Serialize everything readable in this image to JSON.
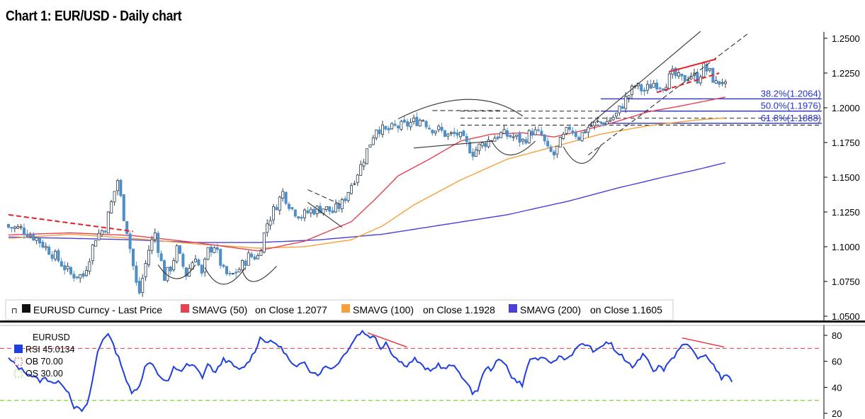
{
  "title": "Chart 1: EUR/USD - Daily chart",
  "colors": {
    "bull": "#2a3e52",
    "bear": "#4e8ec9",
    "sma50": "#e8414f",
    "sma100": "#f4a13a",
    "sma200": "#4a3fd8",
    "rsi": "#1f3fe0",
    "ob_line": "#e83b45",
    "os_line": "#8ad64f",
    "fib": "#2b33c9",
    "trend_red": "#e8202a",
    "pattern": "#333333"
  },
  "legend": {
    "price_icon": "square-marker-icon",
    "price": "EURUSD Curncy - Last Price",
    "sma50_name": "SMAVG (50)",
    "sma50_value": "on Close 1.2077",
    "sma100_name": "SMAVG (100)",
    "sma100_value": "on Close 1.1928",
    "sma200_name": "SMAVG (200)",
    "sma200_value": "on Close 1.1605"
  },
  "rsi_legend": {
    "ticker": "EURUSD",
    "rsi": "RSI  45.0134",
    "ob": "OB  70.00",
    "os": "OS  30.00"
  },
  "chart_data": [
    {
      "type": "candlestick",
      "title": "Chart 1: EUR/USD - Daily chart",
      "y_ticks": [
        "1.2500",
        "1.2250",
        "1.2000",
        "1.1750",
        "1.1500",
        "1.1250",
        "1.1000",
        "1.0750",
        "1.0500"
      ],
      "ylim": [
        1.05,
        1.255
      ],
      "grid": false,
      "close_anchors": [
        [
          0,
          1.114
        ],
        [
          4,
          1.113
        ],
        [
          9,
          1.106
        ],
        [
          15,
          1.093
        ],
        [
          20,
          1.08
        ],
        [
          24,
          1.079
        ],
        [
          28,
          1.107
        ],
        [
          31,
          1.114
        ],
        [
          34,
          1.14
        ],
        [
          35,
          1.148
        ],
        [
          37,
          1.122
        ],
        [
          38,
          1.112
        ],
        [
          41,
          1.073
        ],
        [
          42,
          1.067
        ],
        [
          45,
          1.098
        ],
        [
          47,
          1.11
        ],
        [
          50,
          1.078
        ],
        [
          52,
          1.085
        ],
        [
          54,
          1.098
        ],
        [
          57,
          1.08
        ],
        [
          60,
          1.094
        ],
        [
          62,
          1.079
        ],
        [
          64,
          1.097
        ],
        [
          66,
          1.101
        ],
        [
          69,
          1.082
        ],
        [
          71,
          1.078
        ],
        [
          74,
          1.084
        ],
        [
          77,
          1.093
        ],
        [
          80,
          1.093
        ],
        [
          83,
          1.117
        ],
        [
          85,
          1.126
        ],
        [
          88,
          1.139
        ],
        [
          91,
          1.127
        ],
        [
          94,
          1.122
        ],
        [
          97,
          1.126
        ],
        [
          101,
          1.128
        ],
        [
          104,
          1.125
        ],
        [
          107,
          1.131
        ],
        [
          110,
          1.145
        ],
        [
          113,
          1.158
        ],
        [
          116,
          1.175
        ],
        [
          118,
          1.186
        ],
        [
          121,
          1.183
        ],
        [
          124,
          1.186
        ],
        [
          127,
          1.187
        ],
        [
          130,
          1.19
        ],
        [
          133,
          1.192
        ],
        [
          135,
          1.186
        ],
        [
          138,
          1.184
        ],
        [
          141,
          1.18
        ],
        [
          144,
          1.181
        ],
        [
          146,
          1.176
        ],
        [
          149,
          1.168
        ],
        [
          151,
          1.172
        ],
        [
          155,
          1.178
        ],
        [
          158,
          1.181
        ],
        [
          162,
          1.179
        ],
        [
          165,
          1.176
        ],
        [
          168,
          1.183
        ],
        [
          171,
          1.18
        ],
        [
          173,
          1.169
        ],
        [
          175,
          1.166
        ],
        [
          177,
          1.175
        ],
        [
          180,
          1.186
        ],
        [
          183,
          1.179
        ],
        [
          186,
          1.186
        ],
        [
          189,
          1.189
        ],
        [
          192,
          1.19
        ],
        [
          195,
          1.195
        ],
        [
          198,
          1.206
        ],
        [
          201,
          1.216
        ],
        [
          204,
          1.212
        ],
        [
          207,
          1.218
        ],
        [
          210,
          1.216
        ],
        [
          213,
          1.224
        ],
        [
          216,
          1.22
        ],
        [
          219,
          1.224
        ],
        [
          221,
          1.221
        ],
        [
          223,
          1.229
        ],
        [
          225,
          1.225
        ],
        [
          227,
          1.217
        ],
        [
          229,
          1.22
        ],
        [
          230,
          1.215
        ]
      ],
      "sma50_anchors": [
        [
          0,
          1.1085
        ],
        [
          20,
          1.11
        ],
        [
          40,
          1.108
        ],
        [
          60,
          1.103
        ],
        [
          80,
          1.097
        ],
        [
          95,
          1.104
        ],
        [
          110,
          1.118
        ],
        [
          118,
          1.135
        ],
        [
          125,
          1.151
        ],
        [
          135,
          1.163
        ],
        [
          145,
          1.176
        ],
        [
          155,
          1.181
        ],
        [
          165,
          1.182
        ],
        [
          175,
          1.179
        ],
        [
          185,
          1.184
        ],
        [
          195,
          1.19
        ],
        [
          205,
          1.197
        ],
        [
          215,
          1.201
        ],
        [
          230,
          1.2077
        ]
      ],
      "sma100_anchors": [
        [
          0,
          1.106
        ],
        [
          20,
          1.109
        ],
        [
          40,
          1.106
        ],
        [
          60,
          1.102
        ],
        [
          80,
          1.099
        ],
        [
          95,
          1.1
        ],
        [
          110,
          1.105
        ],
        [
          120,
          1.115
        ],
        [
          130,
          1.13
        ],
        [
          145,
          1.148
        ],
        [
          160,
          1.163
        ],
        [
          175,
          1.172
        ],
        [
          190,
          1.181
        ],
        [
          205,
          1.187
        ],
        [
          220,
          1.191
        ],
        [
          230,
          1.1928
        ]
      ],
      "sma200_anchors": [
        [
          0,
          1.107
        ],
        [
          20,
          1.106
        ],
        [
          40,
          1.105
        ],
        [
          60,
          1.103
        ],
        [
          80,
          1.103
        ],
        [
          100,
          1.105
        ],
        [
          120,
          1.109
        ],
        [
          140,
          1.116
        ],
        [
          160,
          1.123
        ],
        [
          180,
          1.133
        ],
        [
          195,
          1.142
        ],
        [
          210,
          1.15
        ],
        [
          220,
          1.155
        ],
        [
          230,
          1.1605
        ]
      ],
      "fibonacci": [
        {
          "label": "38.2%(1.2064)",
          "value": 1.2064
        },
        {
          "label": "50.0%(1.1976)",
          "value": 1.1976
        },
        {
          "label": "61.8%(1.1888)",
          "value": 1.1888
        }
      ],
      "dashed_levels": [
        1.1976,
        1.1925,
        1.1875
      ],
      "trendlines": [
        {
          "style": "dashed",
          "color": "red",
          "points": [
            [
              0,
              1.123
            ],
            [
              40,
              1.111
            ]
          ]
        },
        {
          "style": "solid",
          "color": "dark",
          "points": [
            [
              186,
              1.187
            ],
            [
              222,
              1.255
            ]
          ]
        },
        {
          "style": "dashed",
          "color": "dark",
          "points": [
            [
              186,
              1.166
            ],
            [
              237,
              1.253
            ]
          ]
        },
        {
          "style": "solid",
          "color": "red",
          "points": [
            [
              212,
              1.226
            ],
            [
              227,
              1.235
            ]
          ]
        },
        {
          "style": "dashed",
          "color": "red",
          "points": [
            [
              208,
              1.211
            ],
            [
              228,
              1.225
            ]
          ]
        },
        {
          "style": "dashed",
          "color": "dark",
          "points": [
            [
              96,
              1.141
            ],
            [
              107,
              1.13
            ]
          ]
        },
        {
          "style": "solid",
          "color": "dark",
          "points": [
            [
              96,
              1.132
            ],
            [
              107,
              1.114
            ]
          ]
        },
        {
          "style": "solid",
          "color": "dark",
          "points": [
            [
              130,
              1.171
            ],
            [
              155,
              1.176
            ]
          ]
        },
        {
          "style": "dashed",
          "color": "dark",
          "points": [
            [
              136,
              1.198
            ],
            [
              158,
              1.198
            ]
          ]
        }
      ],
      "arcs": [
        {
          "from": [
            125,
            1.192
          ],
          "top": [
            147,
            1.206
          ],
          "to": [
            165,
            1.194
          ],
          "dir": "up"
        },
        {
          "from": [
            48,
            1.087
          ],
          "bottom": [
            54,
            1.077
          ],
          "to": [
            60,
            1.087
          ],
          "dir": "down"
        },
        {
          "from": [
            63,
            1.085
          ],
          "bottom": [
            69,
            1.073
          ],
          "to": [
            76,
            1.085
          ],
          "dir": "down"
        },
        {
          "from": [
            75,
            1.083
          ],
          "bottom": [
            79,
            1.075
          ],
          "to": [
            86,
            1.086
          ],
          "dir": "down"
        },
        {
          "from": [
            155,
            1.176
          ],
          "bottom": [
            161,
            1.166
          ],
          "to": [
            169,
            1.176
          ],
          "dir": "down"
        },
        {
          "from": [
            178,
            1.172
          ],
          "bottom": [
            184,
            1.16
          ],
          "to": [
            190,
            1.173
          ],
          "dir": "down"
        }
      ]
    },
    {
      "type": "line",
      "series_name": "RSI",
      "y_ticks": [
        "80",
        "60",
        "40",
        "20"
      ],
      "ylim": [
        20,
        80
      ],
      "ob": 70,
      "os": 30,
      "anchors": [
        [
          0,
          62
        ],
        [
          4,
          55
        ],
        [
          8,
          50
        ],
        [
          12,
          45
        ],
        [
          14,
          47
        ],
        [
          18,
          43
        ],
        [
          20,
          44
        ],
        [
          23,
          36
        ],
        [
          25,
          25
        ],
        [
          28,
          22
        ],
        [
          30,
          26
        ],
        [
          32,
          45
        ],
        [
          34,
          67
        ],
        [
          36,
          77
        ],
        [
          38,
          82
        ],
        [
          40,
          72
        ],
        [
          43,
          58
        ],
        [
          45,
          45
        ],
        [
          47,
          35
        ],
        [
          50,
          42
        ],
        [
          52,
          55
        ],
        [
          54,
          60
        ],
        [
          56,
          55
        ],
        [
          58,
          47
        ],
        [
          61,
          44
        ],
        [
          63,
          55
        ],
        [
          66,
          53
        ],
        [
          68,
          57
        ],
        [
          71,
          56
        ],
        [
          74,
          48
        ],
        [
          76,
          58
        ],
        [
          79,
          51
        ],
        [
          82,
          62
        ],
        [
          85,
          58
        ],
        [
          88,
          53
        ],
        [
          91,
          58
        ],
        [
          94,
          68
        ],
        [
          96,
          78
        ],
        [
          99,
          75
        ],
        [
          102,
          74
        ],
        [
          105,
          68
        ],
        [
          108,
          58
        ],
        [
          110,
          55
        ],
        [
          113,
          60
        ],
        [
          115,
          53
        ],
        [
          118,
          50
        ],
        [
          121,
          56
        ],
        [
          124,
          55
        ],
        [
          127,
          62
        ],
        [
          130,
          71
        ],
        [
          133,
          80
        ],
        [
          135,
          83
        ],
        [
          137,
          80
        ],
        [
          140,
          78
        ],
        [
          142,
          70
        ],
        [
          144,
          75
        ],
        [
          146,
          67
        ],
        [
          149,
          60
        ],
        [
          152,
          57
        ],
        [
          155,
          62
        ],
        [
          158,
          56
        ],
        [
          161,
          52
        ],
        [
          164,
          58
        ],
        [
          166,
          54
        ],
        [
          169,
          57
        ],
        [
          172,
          52
        ],
        [
          175,
          42
        ],
        [
          177,
          36
        ],
        [
          179,
          38
        ],
        [
          182,
          55
        ],
        [
          184,
          54
        ],
        [
          187,
          61
        ],
        [
          190,
          58
        ],
        [
          192,
          47
        ],
        [
          194,
          45
        ],
        [
          196,
          42
        ],
        [
          199,
          62
        ],
        [
          202,
          62
        ],
        [
          205,
          61
        ],
        [
          208,
          59
        ],
        [
          210,
          64
        ],
        [
          213,
          62
        ],
        [
          216,
          68
        ],
        [
          219,
          74
        ],
        [
          221,
          72
        ],
        [
          224,
          67
        ],
        [
          226,
          71
        ],
        [
          228,
          75
        ],
        [
          230,
          73
        ],
        [
          232,
          66
        ],
        [
          234,
          65
        ],
        [
          236,
          58
        ],
        [
          238,
          56
        ],
        [
          240,
          60
        ],
        [
          242,
          66
        ],
        [
          244,
          62
        ],
        [
          246,
          53
        ],
        [
          248,
          56
        ],
        [
          250,
          54
        ],
        [
          252,
          60
        ],
        [
          254,
          64
        ],
        [
          256,
          71
        ],
        [
          258,
          73
        ],
        [
          260,
          70
        ],
        [
          262,
          65
        ],
        [
          264,
          62
        ],
        [
          266,
          65
        ],
        [
          268,
          60
        ],
        [
          270,
          54
        ],
        [
          272,
          47
        ],
        [
          275,
          49
        ],
        [
          276,
          45
        ]
      ],
      "trendlines": [
        {
          "points": [
            [
              137,
              82
            ],
            [
              152,
              71
            ]
          ]
        },
        {
          "points": [
            [
              257,
              78
            ],
            [
              273,
              71
            ]
          ]
        }
      ]
    }
  ]
}
